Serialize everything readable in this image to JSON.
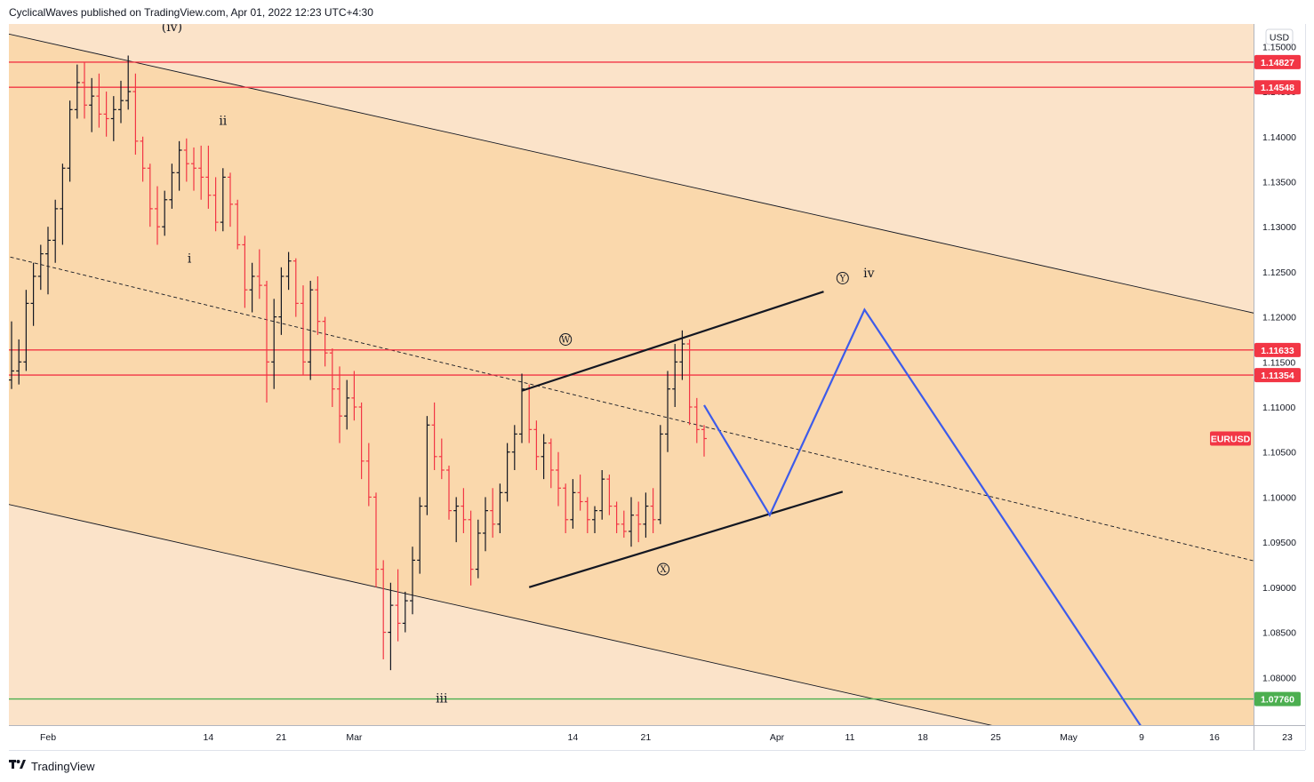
{
  "header": {
    "text": "CyclicalWaves published on TradingView.com, Apr 01, 2022 12:23 UTC+4:30"
  },
  "footer": {
    "logo_icon": "tradingview-logo-icon",
    "brand": "TradingView"
  },
  "chart_data": {
    "type": "candlestick",
    "symbol": "EURUSD",
    "currency": "USD",
    "price_axis": {
      "range": [
        1.0747,
        1.1525
      ],
      "ticks": [
        "1.15000",
        "1.14500",
        "1.14000",
        "1.13500",
        "1.13000",
        "1.12500",
        "1.12000",
        "1.11500",
        "1.11000",
        "1.10500",
        "1.10000",
        "1.09500",
        "1.09000",
        "1.08500",
        "1.08000"
      ]
    },
    "time_axis": {
      "labels": [
        {
          "label": "Feb",
          "bar": 0
        },
        {
          "label": "14",
          "bar": 11
        },
        {
          "label": "21",
          "bar": 16
        },
        {
          "label": "Mar",
          "bar": 21
        },
        {
          "label": "14",
          "bar": 36
        },
        {
          "label": "21",
          "bar": 41
        },
        {
          "label": "Apr",
          "bar": 50
        },
        {
          "label": "11",
          "bar": 55
        },
        {
          "label": "18",
          "bar": 60
        },
        {
          "label": "25",
          "bar": 65
        },
        {
          "label": "May",
          "bar": 70
        },
        {
          "label": "9",
          "bar": 75
        },
        {
          "label": "16",
          "bar": 80
        },
        {
          "label": "23",
          "bar": 85
        }
      ]
    },
    "candles": [
      {
        "bar": -2.5,
        "o": 1.113,
        "h": 1.1195,
        "l": 1.112,
        "c": 1.114
      },
      {
        "bar": -2.0,
        "o": 1.114,
        "h": 1.1175,
        "l": 1.1125,
        "c": 1.115
      },
      {
        "bar": -1.5,
        "o": 1.115,
        "h": 1.123,
        "l": 1.114,
        "c": 1.1215
      },
      {
        "bar": -1.0,
        "o": 1.1215,
        "h": 1.126,
        "l": 1.119,
        "c": 1.1245
      },
      {
        "bar": -0.5,
        "o": 1.1245,
        "h": 1.128,
        "l": 1.123,
        "c": 1.127
      },
      {
        "bar": 0.0,
        "o": 1.127,
        "h": 1.13,
        "l": 1.1225,
        "c": 1.1285
      },
      {
        "bar": 0.5,
        "o": 1.1285,
        "h": 1.133,
        "l": 1.126,
        "c": 1.132
      },
      {
        "bar": 1.0,
        "o": 1.132,
        "h": 1.137,
        "l": 1.128,
        "c": 1.1365
      },
      {
        "bar": 1.5,
        "o": 1.1365,
        "h": 1.144,
        "l": 1.135,
        "c": 1.143
      },
      {
        "bar": 2.0,
        "o": 1.143,
        "h": 1.148,
        "l": 1.142,
        "c": 1.146
      },
      {
        "bar": 2.5,
        "o": 1.146,
        "h": 1.1483,
        "l": 1.142,
        "c": 1.1435
      },
      {
        "bar": 3.0,
        "o": 1.1435,
        "h": 1.1465,
        "l": 1.1405,
        "c": 1.1445
      },
      {
        "bar": 3.5,
        "o": 1.1445,
        "h": 1.147,
        "l": 1.141,
        "c": 1.1425
      },
      {
        "bar": 4.0,
        "o": 1.1425,
        "h": 1.145,
        "l": 1.14,
        "c": 1.142
      },
      {
        "bar": 4.5,
        "o": 1.142,
        "h": 1.1445,
        "l": 1.1395,
        "c": 1.143
      },
      {
        "bar": 5.0,
        "o": 1.143,
        "h": 1.1462,
        "l": 1.1415,
        "c": 1.144
      },
      {
        "bar": 5.5,
        "o": 1.144,
        "h": 1.149,
        "l": 1.143,
        "c": 1.145
      },
      {
        "bar": 6.0,
        "o": 1.145,
        "h": 1.147,
        "l": 1.138,
        "c": 1.1395
      },
      {
        "bar": 6.5,
        "o": 1.1395,
        "h": 1.14,
        "l": 1.135,
        "c": 1.1365
      },
      {
        "bar": 7.0,
        "o": 1.1365,
        "h": 1.137,
        "l": 1.13,
        "c": 1.132
      },
      {
        "bar": 7.5,
        "o": 1.132,
        "h": 1.1345,
        "l": 1.128,
        "c": 1.13
      },
      {
        "bar": 8.0,
        "o": 1.13,
        "h": 1.134,
        "l": 1.129,
        "c": 1.133
      },
      {
        "bar": 8.5,
        "o": 1.133,
        "h": 1.137,
        "l": 1.132,
        "c": 1.136
      },
      {
        "bar": 9.0,
        "o": 1.136,
        "h": 1.1395,
        "l": 1.134,
        "c": 1.1385
      },
      {
        "bar": 9.5,
        "o": 1.1385,
        "h": 1.1398,
        "l": 1.135,
        "c": 1.137
      },
      {
        "bar": 10.0,
        "o": 1.137,
        "h": 1.1388,
        "l": 1.134,
        "c": 1.1365
      },
      {
        "bar": 10.5,
        "o": 1.1365,
        "h": 1.139,
        "l": 1.133,
        "c": 1.1355
      },
      {
        "bar": 11.0,
        "o": 1.1355,
        "h": 1.139,
        "l": 1.132,
        "c": 1.1335
      },
      {
        "bar": 11.5,
        "o": 1.1335,
        "h": 1.1355,
        "l": 1.1295,
        "c": 1.1305
      },
      {
        "bar": 12.0,
        "o": 1.1305,
        "h": 1.1365,
        "l": 1.1295,
        "c": 1.1355
      },
      {
        "bar": 12.5,
        "o": 1.1355,
        "h": 1.136,
        "l": 1.13,
        "c": 1.1325
      },
      {
        "bar": 13.0,
        "o": 1.1325,
        "h": 1.133,
        "l": 1.1275,
        "c": 1.128
      },
      {
        "bar": 13.5,
        "o": 1.128,
        "h": 1.129,
        "l": 1.121,
        "c": 1.123
      },
      {
        "bar": 14.0,
        "o": 1.123,
        "h": 1.126,
        "l": 1.1205,
        "c": 1.1245
      },
      {
        "bar": 14.5,
        "o": 1.1245,
        "h": 1.1275,
        "l": 1.122,
        "c": 1.1235
      },
      {
        "bar": 15.0,
        "o": 1.1235,
        "h": 1.124,
        "l": 1.1105,
        "c": 1.115
      },
      {
        "bar": 15.5,
        "o": 1.115,
        "h": 1.122,
        "l": 1.112,
        "c": 1.12
      },
      {
        "bar": 16.0,
        "o": 1.12,
        "h": 1.1255,
        "l": 1.118,
        "c": 1.1245
      },
      {
        "bar": 16.5,
        "o": 1.1245,
        "h": 1.1272,
        "l": 1.123,
        "c": 1.1262
      },
      {
        "bar": 17.0,
        "o": 1.1262,
        "h": 1.1265,
        "l": 1.12,
        "c": 1.1215
      },
      {
        "bar": 17.5,
        "o": 1.1215,
        "h": 1.1235,
        "l": 1.1135,
        "c": 1.115
      },
      {
        "bar": 18.0,
        "o": 1.115,
        "h": 1.124,
        "l": 1.113,
        "c": 1.123
      },
      {
        "bar": 18.5,
        "o": 1.123,
        "h": 1.1245,
        "l": 1.118,
        "c": 1.1195
      },
      {
        "bar": 19.0,
        "o": 1.1195,
        "h": 1.12,
        "l": 1.1145,
        "c": 1.116
      },
      {
        "bar": 19.5,
        "o": 1.116,
        "h": 1.1165,
        "l": 1.11,
        "c": 1.112
      },
      {
        "bar": 20.0,
        "o": 1.112,
        "h": 1.1145,
        "l": 1.106,
        "c": 1.109
      },
      {
        "bar": 20.5,
        "o": 1.109,
        "h": 1.113,
        "l": 1.1075,
        "c": 1.111
      },
      {
        "bar": 21.0,
        "o": 1.111,
        "h": 1.114,
        "l": 1.1085,
        "c": 1.11
      },
      {
        "bar": 21.5,
        "o": 1.11,
        "h": 1.1105,
        "l": 1.102,
        "c": 1.104
      },
      {
        "bar": 22.0,
        "o": 1.104,
        "h": 1.106,
        "l": 1.099,
        "c": 1.1
      },
      {
        "bar": 22.5,
        "o": 1.1,
        "h": 1.1005,
        "l": 1.09,
        "c": 1.092
      },
      {
        "bar": 23.0,
        "o": 1.092,
        "h": 1.093,
        "l": 1.082,
        "c": 1.085
      },
      {
        "bar": 23.5,
        "o": 1.085,
        "h": 1.0905,
        "l": 1.0808,
        "c": 1.088
      },
      {
        "bar": 24.0,
        "o": 1.088,
        "h": 1.092,
        "l": 1.084,
        "c": 1.086
      },
      {
        "bar": 24.5,
        "o": 1.086,
        "h": 1.0895,
        "l": 1.085,
        "c": 1.0885
      },
      {
        "bar": 25.0,
        "o": 1.0885,
        "h": 1.0945,
        "l": 1.087,
        "c": 1.093
      },
      {
        "bar": 25.5,
        "o": 1.093,
        "h": 1.1,
        "l": 1.0915,
        "c": 1.099
      },
      {
        "bar": 26.0,
        "o": 1.099,
        "h": 1.109,
        "l": 1.098,
        "c": 1.108
      },
      {
        "bar": 26.5,
        "o": 1.108,
        "h": 1.1105,
        "l": 1.103,
        "c": 1.1045
      },
      {
        "bar": 27.0,
        "o": 1.1045,
        "h": 1.1065,
        "l": 1.102,
        "c": 1.103
      },
      {
        "bar": 27.5,
        "o": 1.103,
        "h": 1.1035,
        "l": 1.0975,
        "c": 1.0985
      },
      {
        "bar": 28.0,
        "o": 1.0985,
        "h": 1.1,
        "l": 1.095,
        "c": 1.099
      },
      {
        "bar": 28.5,
        "o": 1.099,
        "h": 1.101,
        "l": 1.096,
        "c": 1.0975
      },
      {
        "bar": 29.0,
        "o": 1.0975,
        "h": 1.0985,
        "l": 1.0902,
        "c": 1.092
      },
      {
        "bar": 29.5,
        "o": 1.092,
        "h": 1.0975,
        "l": 1.091,
        "c": 1.096
      },
      {
        "bar": 30.0,
        "o": 1.096,
        "h": 1.1,
        "l": 1.094,
        "c": 1.0985
      },
      {
        "bar": 30.5,
        "o": 1.0985,
        "h": 1.101,
        "l": 1.0955,
        "c": 1.097
      },
      {
        "bar": 31.0,
        "o": 1.097,
        "h": 1.1015,
        "l": 1.096,
        "c": 1.1005
      },
      {
        "bar": 31.5,
        "o": 1.1005,
        "h": 1.106,
        "l": 1.0995,
        "c": 1.105
      },
      {
        "bar": 32.0,
        "o": 1.105,
        "h": 1.108,
        "l": 1.103,
        "c": 1.107
      },
      {
        "bar": 32.5,
        "o": 1.107,
        "h": 1.1137,
        "l": 1.106,
        "c": 1.112
      },
      {
        "bar": 33.0,
        "o": 1.112,
        "h": 1.1125,
        "l": 1.106,
        "c": 1.1075
      },
      {
        "bar": 33.5,
        "o": 1.1075,
        "h": 1.1085,
        "l": 1.103,
        "c": 1.1045
      },
      {
        "bar": 34.0,
        "o": 1.1045,
        "h": 1.107,
        "l": 1.102,
        "c": 1.106
      },
      {
        "bar": 34.5,
        "o": 1.106,
        "h": 1.1065,
        "l": 1.101,
        "c": 1.103
      },
      {
        "bar": 35.0,
        "o": 1.103,
        "h": 1.105,
        "l": 1.099,
        "c": 1.101
      },
      {
        "bar": 35.5,
        "o": 1.101,
        "h": 1.1015,
        "l": 1.096,
        "c": 1.0975
      },
      {
        "bar": 36.0,
        "o": 1.0975,
        "h": 1.102,
        "l": 1.0965,
        "c": 1.1005
      },
      {
        "bar": 36.5,
        "o": 1.1005,
        "h": 1.1025,
        "l": 1.0985,
        "c": 1.0995
      },
      {
        "bar": 37.0,
        "o": 1.0995,
        "h": 1.1,
        "l": 1.096,
        "c": 1.0975
      },
      {
        "bar": 37.5,
        "o": 1.0975,
        "h": 1.099,
        "l": 1.096,
        "c": 1.0985
      },
      {
        "bar": 38.0,
        "o": 1.0985,
        "h": 1.103,
        "l": 1.0975,
        "c": 1.102
      },
      {
        "bar": 38.5,
        "o": 1.102,
        "h": 1.1025,
        "l": 1.098,
        "c": 1.099
      },
      {
        "bar": 39.0,
        "o": 1.099,
        "h": 1.0995,
        "l": 1.096,
        "c": 1.097
      },
      {
        "bar": 39.5,
        "o": 1.097,
        "h": 1.0985,
        "l": 1.0955,
        "c": 1.0962
      },
      {
        "bar": 40.0,
        "o": 1.0962,
        "h": 1.1,
        "l": 1.0945,
        "c": 1.098
      },
      {
        "bar": 40.5,
        "o": 1.098,
        "h": 1.0995,
        "l": 1.095,
        "c": 1.097
      },
      {
        "bar": 41.0,
        "o": 1.097,
        "h": 1.1005,
        "l": 1.0955,
        "c": 1.099
      },
      {
        "bar": 41.5,
        "o": 1.099,
        "h": 1.101,
        "l": 1.096,
        "c": 1.0975
      },
      {
        "bar": 42.0,
        "o": 1.0975,
        "h": 1.108,
        "l": 1.097,
        "c": 1.107
      },
      {
        "bar": 42.5,
        "o": 1.107,
        "h": 1.114,
        "l": 1.105,
        "c": 1.112
      },
      {
        "bar": 43.0,
        "o": 1.112,
        "h": 1.117,
        "l": 1.11,
        "c": 1.115
      },
      {
        "bar": 43.5,
        "o": 1.115,
        "h": 1.1185,
        "l": 1.113,
        "c": 1.117
      },
      {
        "bar": 44.0,
        "o": 1.117,
        "h": 1.1175,
        "l": 1.108,
        "c": 1.11
      },
      {
        "bar": 44.5,
        "o": 1.11,
        "h": 1.111,
        "l": 1.106,
        "c": 1.1075
      },
      {
        "bar": 45.0,
        "o": 1.1075,
        "h": 1.108,
        "l": 1.1045,
        "c": 1.1065
      }
    ],
    "horizontal_levels": [
      {
        "price": 1.14827,
        "label": "1.14827",
        "color": "#f23645"
      },
      {
        "price": 1.14548,
        "label": "1.14548",
        "color": "#f23645"
      },
      {
        "price": 1.11633,
        "label": "1.11633",
        "color": "#f23645"
      },
      {
        "price": 1.11354,
        "label": "1.11354",
        "color": "#f23645"
      },
      {
        "price": 1.0776,
        "label": "1.07760",
        "color": "#4caf50"
      }
    ],
    "last_price_badge": {
      "label": "EURUSD",
      "price": 1.1065,
      "color": "#f23645"
    },
    "channel": {
      "upper": [
        [
          -3.0,
          1.1515
        ],
        [
          85.8,
          1.1193
        ]
      ],
      "lower": [
        [
          -3.0,
          1.0993
        ],
        [
          85.8,
          1.067
        ]
      ],
      "median": [
        [
          -3.0,
          1.1268
        ],
        [
          85.8,
          1.0917
        ]
      ],
      "fill_color": "#fad8ac",
      "outer_color": "#fbe3c9"
    },
    "triangle_lines": [
      {
        "points": [
          [
            32.5,
            1.1118
          ],
          [
            53.2,
            1.1228
          ]
        ]
      },
      {
        "points": [
          [
            33.0,
            1.09
          ],
          [
            54.5,
            1.1006
          ]
        ]
      }
    ],
    "projection": {
      "color": "#3d5bea",
      "points": [
        [
          45.0,
          1.1102
        ],
        [
          49.5,
          1.098
        ],
        [
          56.0,
          1.1208
        ],
        [
          75.2,
          1.074
        ]
      ]
    },
    "wave_labels": [
      {
        "text": "(iv)",
        "bar": 8.5,
        "price": 1.1522,
        "circled": false
      },
      {
        "text": "ii",
        "bar": 12.0,
        "price": 1.1418,
        "circled": false
      },
      {
        "text": "i",
        "bar": 9.7,
        "price": 1.1265,
        "circled": false
      },
      {
        "text": "iii",
        "bar": 27.0,
        "price": 1.0777,
        "circled": false
      },
      {
        "text": "W",
        "bar": 35.5,
        "price": 1.1175,
        "circled": true
      },
      {
        "text": "X",
        "bar": 42.2,
        "price": 1.092,
        "circled": true
      },
      {
        "text": "Y",
        "bar": 54.5,
        "price": 1.1243,
        "circled": true
      },
      {
        "text": "iv",
        "bar": 56.3,
        "price": 1.1249,
        "circled": false
      }
    ],
    "grid": false,
    "up_color": "#131722",
    "down_color": "#f23645"
  }
}
